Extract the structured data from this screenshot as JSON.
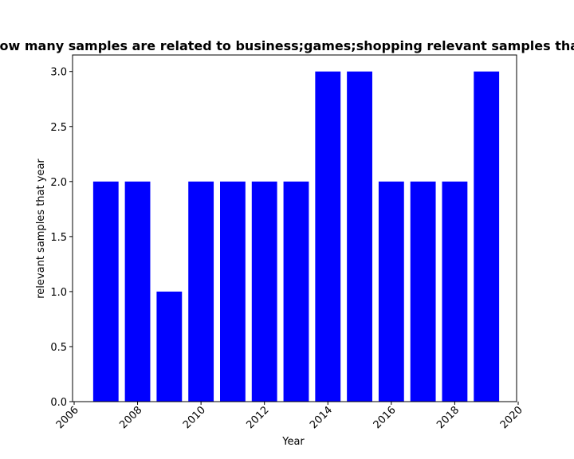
{
  "chart_data": {
    "type": "bar",
    "title": "Figure shows how many samples are related to business;games;shopping relevant samples that year in privacy",
    "xlabel": "Year",
    "ylabel": "relevant samples that year",
    "x": [
      2007,
      2008,
      2009,
      2010,
      2011,
      2012,
      2013,
      2014,
      2015,
      2016,
      2017,
      2018,
      2019
    ],
    "values": [
      2,
      2,
      1,
      2,
      2,
      2,
      2,
      3,
      3,
      2,
      2,
      2,
      3
    ],
    "bar_width_years": 0.8,
    "bar_color": "#0000ff",
    "xlim": [
      2005.95,
      2019.95
    ],
    "ylim": [
      0,
      3.15
    ],
    "xticks": [
      2006,
      2008,
      2010,
      2012,
      2014,
      2016,
      2018,
      2020
    ],
    "xtick_labels": [
      "2006",
      "2008",
      "2010",
      "2012",
      "2014",
      "2016",
      "2018",
      "2020"
    ],
    "yticks": [
      0,
      0.5,
      1,
      1.5,
      2,
      2.5,
      3
    ],
    "ytick_labels": [
      "0.0",
      "0.5",
      "1.0",
      "1.5",
      "2.0",
      "2.5",
      "3.0"
    ],
    "grid": false,
    "legend": "none"
  }
}
